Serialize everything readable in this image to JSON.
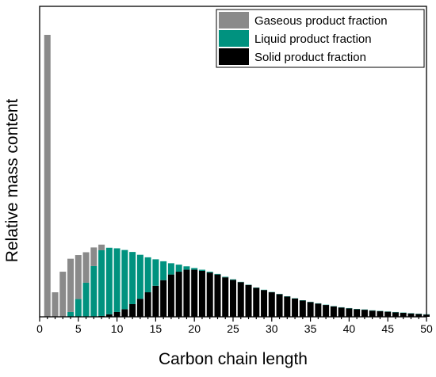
{
  "chart_data": {
    "type": "bar",
    "stacked": true,
    "title": "",
    "xlabel": "Carbon chain length",
    "ylabel": "Relative mass content",
    "xlim": [
      0,
      50
    ],
    "ylim": [
      0,
      1
    ],
    "y_ticks_shown": false,
    "x_ticks": [
      0,
      5,
      10,
      15,
      20,
      25,
      30,
      35,
      40,
      45,
      50
    ],
    "grid": false,
    "legend_position": "top-right",
    "x": [
      1,
      2,
      3,
      4,
      5,
      6,
      7,
      8,
      9,
      10,
      11,
      12,
      13,
      14,
      15,
      16,
      17,
      18,
      19,
      20,
      21,
      22,
      23,
      24,
      25,
      26,
      27,
      28,
      29,
      30,
      31,
      32,
      33,
      34,
      35,
      36,
      37,
      38,
      39,
      40,
      41,
      42,
      43,
      44,
      45,
      46,
      47,
      48,
      49,
      50
    ],
    "series": [
      {
        "name": "Solid product fraction",
        "color": "#000000",
        "values": [
          0,
          0,
          0,
          0,
          0,
          0,
          0,
          0.003,
          0.009,
          0.017,
          0.027,
          0.045,
          0.064,
          0.087,
          0.11,
          0.13,
          0.15,
          0.16,
          0.167,
          0.167,
          0.163,
          0.157,
          0.15,
          0.14,
          0.131,
          0.123,
          0.113,
          0.103,
          0.095,
          0.087,
          0.08,
          0.072,
          0.065,
          0.058,
          0.052,
          0.047,
          0.042,
          0.037,
          0.033,
          0.03,
          0.027,
          0.025,
          0.022,
          0.02,
          0.018,
          0.016,
          0.014,
          0.012,
          0.01,
          0.008
        ]
      },
      {
        "name": "Liquid product fraction",
        "color": "#00927f",
        "values": [
          0,
          0,
          0,
          0.017,
          0.063,
          0.121,
          0.18,
          0.233,
          0.236,
          0.226,
          0.21,
          0.185,
          0.156,
          0.124,
          0.094,
          0.067,
          0.04,
          0.025,
          0.012,
          0.006,
          0.004,
          0.003,
          0.002,
          0.002,
          0.002,
          0.001,
          0.001,
          0.001,
          0.001,
          0.001,
          0.001,
          0.001,
          0.001,
          0.001,
          0.001,
          0.001,
          0.001,
          0.001,
          0.001,
          0.001,
          0.001,
          0.001,
          0.001,
          0.001,
          0.001,
          0.001,
          0.001,
          0.001,
          0.001,
          0.001
        ]
      },
      {
        "name": "Gaseous product fraction",
        "color": "#8a8a8a",
        "values": [
          1.0,
          0.087,
          0.16,
          0.189,
          0.156,
          0.108,
          0.066,
          0.02,
          0,
          0,
          0,
          0,
          0,
          0,
          0,
          0,
          0,
          0,
          0,
          0,
          0,
          0,
          0,
          0,
          0,
          0,
          0,
          0,
          0,
          0,
          0,
          0,
          0,
          0,
          0,
          0,
          0,
          0,
          0,
          0,
          0,
          0,
          0,
          0,
          0,
          0,
          0,
          0,
          0,
          0
        ]
      }
    ],
    "legend": [
      {
        "label": "Gaseous product fraction",
        "color": "#8a8a8a"
      },
      {
        "label": "Liquid product fraction",
        "color": "#00927f"
      },
      {
        "label": "Solid product fraction",
        "color": "#000000"
      }
    ]
  }
}
